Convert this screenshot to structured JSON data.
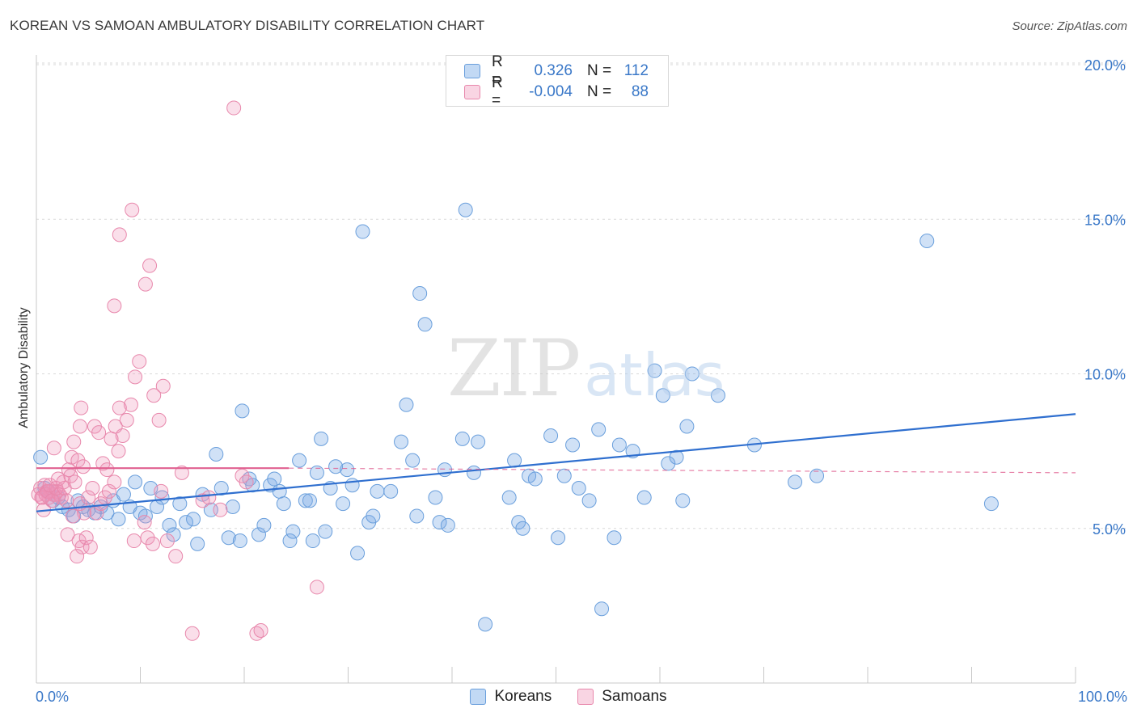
{
  "title": "KOREAN VS SAMOAN AMBULATORY DISABILITY CORRELATION CHART",
  "source": "Source: ZipAtlas.com",
  "watermark": {
    "zip": "ZIP",
    "atlas": "atlas"
  },
  "legend": {
    "rows": [
      {
        "r_label": "R =",
        "r_value": "0.326",
        "n_label": "N =",
        "n_value": "112"
      },
      {
        "r_label": "R =",
        "r_value": "-0.004",
        "n_label": "N =",
        "n_value": "88"
      }
    ]
  },
  "bottom_legend": [
    "Koreans",
    "Samoans"
  ],
  "colors": {
    "korean_fill": "rgba(120,170,230,0.35)",
    "korean_stroke": "#6a9fdc",
    "korean_line": "#2f6fcf",
    "samoan_fill": "rgba(240,150,185,0.30)",
    "samoan_stroke": "#e888ac",
    "samoan_line": "#e06090",
    "grid": "#d9d9d9",
    "axis_text": "#3a78c8"
  },
  "chart_data": {
    "type": "scatter",
    "title": "KOREAN VS SAMOAN AMBULATORY DISABILITY CORRELATION CHART",
    "xlabel": "",
    "ylabel": "Ambulatory Disability",
    "xlim": [
      0,
      100
    ],
    "ylim": [
      0,
      20.5
    ],
    "x_tick_labels": [
      "0.0%",
      "100.0%"
    ],
    "y_ticks": [
      5,
      10,
      15,
      20
    ],
    "y_tick_labels": [
      "5.0%",
      "10.0%",
      "15.0%",
      "20.0%"
    ],
    "grid": true,
    "legend_position": "top-center",
    "series": [
      {
        "name": "Koreans",
        "r": 0.326,
        "n": 112,
        "trend": {
          "x": [
            0,
            100
          ],
          "y": [
            5.55,
            8.7
          ]
        },
        "points": [
          [
            0.4,
            7.3
          ],
          [
            0.8,
            6.3
          ],
          [
            1.2,
            6.2
          ],
          [
            1.6,
            5.9
          ],
          [
            2.1,
            6.0
          ],
          [
            2.5,
            5.7
          ],
          [
            3.1,
            5.6
          ],
          [
            3.6,
            5.4
          ],
          [
            4.0,
            5.9
          ],
          [
            4.5,
            5.7
          ],
          [
            5.0,
            5.6
          ],
          [
            5.6,
            5.5
          ],
          [
            6.2,
            5.7
          ],
          [
            6.8,
            5.5
          ],
          [
            7.4,
            5.9
          ],
          [
            7.9,
            5.3
          ],
          [
            8.4,
            6.1
          ],
          [
            9.0,
            5.7
          ],
          [
            9.5,
            6.5
          ],
          [
            10.0,
            5.5
          ],
          [
            10.5,
            5.4
          ],
          [
            11.0,
            6.3
          ],
          [
            11.6,
            5.7
          ],
          [
            12.1,
            6.0
          ],
          [
            12.8,
            5.1
          ],
          [
            13.2,
            4.8
          ],
          [
            13.8,
            5.8
          ],
          [
            14.4,
            5.2
          ],
          [
            15.1,
            5.3
          ],
          [
            15.5,
            4.5
          ],
          [
            16.0,
            6.1
          ],
          [
            16.8,
            5.6
          ],
          [
            17.3,
            7.4
          ],
          [
            17.8,
            6.3
          ],
          [
            18.5,
            4.7
          ],
          [
            18.9,
            5.7
          ],
          [
            19.6,
            4.6
          ],
          [
            19.8,
            8.8
          ],
          [
            20.5,
            6.6
          ],
          [
            20.8,
            6.4
          ],
          [
            21.4,
            4.8
          ],
          [
            21.9,
            5.1
          ],
          [
            22.5,
            6.4
          ],
          [
            22.9,
            6.6
          ],
          [
            23.4,
            6.2
          ],
          [
            23.8,
            5.8
          ],
          [
            24.4,
            4.6
          ],
          [
            24.7,
            4.9
          ],
          [
            25.3,
            7.2
          ],
          [
            25.9,
            5.9
          ],
          [
            26.3,
            5.9
          ],
          [
            26.6,
            4.6
          ],
          [
            27.0,
            6.8
          ],
          [
            27.4,
            7.9
          ],
          [
            27.8,
            4.9
          ],
          [
            28.3,
            6.3
          ],
          [
            28.8,
            7.0
          ],
          [
            29.5,
            5.8
          ],
          [
            29.9,
            6.9
          ],
          [
            30.4,
            6.4
          ],
          [
            30.9,
            4.2
          ],
          [
            31.4,
            14.6
          ],
          [
            32.0,
            5.2
          ],
          [
            32.4,
            5.4
          ],
          [
            32.8,
            6.2
          ],
          [
            34.1,
            6.2
          ],
          [
            35.1,
            7.8
          ],
          [
            35.6,
            9.0
          ],
          [
            36.2,
            7.2
          ],
          [
            36.6,
            5.4
          ],
          [
            36.9,
            12.6
          ],
          [
            37.4,
            11.6
          ],
          [
            38.4,
            6.0
          ],
          [
            38.8,
            5.2
          ],
          [
            39.3,
            6.9
          ],
          [
            39.6,
            5.1
          ],
          [
            41.0,
            7.9
          ],
          [
            41.3,
            15.3
          ],
          [
            42.1,
            6.8
          ],
          [
            42.5,
            7.8
          ],
          [
            43.2,
            1.9
          ],
          [
            45.5,
            6.0
          ],
          [
            46.0,
            7.2
          ],
          [
            46.4,
            5.2
          ],
          [
            46.8,
            5.0
          ],
          [
            47.4,
            6.7
          ],
          [
            48.0,
            6.6
          ],
          [
            49.5,
            8.0
          ],
          [
            50.2,
            4.7
          ],
          [
            50.8,
            6.7
          ],
          [
            51.6,
            7.7
          ],
          [
            52.2,
            6.3
          ],
          [
            53.2,
            5.9
          ],
          [
            54.1,
            8.2
          ],
          [
            54.4,
            2.4
          ],
          [
            55.6,
            4.7
          ],
          [
            56.1,
            7.7
          ],
          [
            57.4,
            7.5
          ],
          [
            58.5,
            6.0
          ],
          [
            59.5,
            10.1
          ],
          [
            60.3,
            9.3
          ],
          [
            60.8,
            7.1
          ],
          [
            61.6,
            7.3
          ],
          [
            62.2,
            5.9
          ],
          [
            62.6,
            8.3
          ],
          [
            63.1,
            10.0
          ],
          [
            65.6,
            9.3
          ],
          [
            69.1,
            7.7
          ],
          [
            73.0,
            6.5
          ],
          [
            75.1,
            6.7
          ],
          [
            85.7,
            14.3
          ],
          [
            91.9,
            5.8
          ]
        ]
      },
      {
        "name": "Samoans",
        "r": -0.004,
        "n": 88,
        "trend": {
          "x": [
            0,
            24.3
          ],
          "y": [
            6.95,
            6.95
          ]
        },
        "trend_dashed": {
          "x": [
            24.3,
            100
          ],
          "y": [
            6.95,
            6.8
          ]
        },
        "points": [
          [
            0.2,
            6.1
          ],
          [
            0.4,
            6.3
          ],
          [
            0.6,
            6.0
          ],
          [
            0.8,
            6.4
          ],
          [
            1.0,
            6.2
          ],
          [
            1.2,
            6.0
          ],
          [
            1.4,
            6.2
          ],
          [
            1.6,
            6.1
          ],
          [
            1.8,
            6.1
          ],
          [
            2.0,
            6.2
          ],
          [
            2.2,
            6.1
          ],
          [
            2.4,
            6.0
          ],
          [
            0.5,
            6.0
          ],
          [
            1.1,
            6.2
          ],
          [
            0.9,
            6.1
          ],
          [
            1.5,
            5.9
          ],
          [
            1.9,
            6.3
          ],
          [
            2.6,
            6.5
          ],
          [
            3.1,
            6.9
          ],
          [
            3.4,
            7.3
          ],
          [
            3.6,
            7.8
          ],
          [
            4.0,
            7.2
          ],
          [
            4.5,
            7.0
          ],
          [
            2.7,
            6.3
          ],
          [
            1.3,
            6.4
          ],
          [
            0.7,
            5.6
          ],
          [
            1.7,
            7.6
          ],
          [
            2.1,
            6.6
          ],
          [
            2.9,
            5.9
          ],
          [
            3.3,
            6.7
          ],
          [
            3.7,
            6.5
          ],
          [
            4.2,
            5.8
          ],
          [
            4.6,
            5.5
          ],
          [
            5.0,
            6.0
          ],
          [
            5.4,
            6.3
          ],
          [
            5.8,
            5.5
          ],
          [
            6.2,
            5.8
          ],
          [
            6.6,
            6.0
          ],
          [
            7.0,
            6.2
          ],
          [
            7.5,
            6.5
          ],
          [
            7.9,
            7.5
          ],
          [
            8.3,
            8.0
          ],
          [
            8.7,
            8.5
          ],
          [
            9.1,
            9.0
          ],
          [
            9.5,
            9.9
          ],
          [
            9.9,
            10.4
          ],
          [
            10.5,
            12.9
          ],
          [
            10.9,
            13.5
          ],
          [
            11.3,
            9.3
          ],
          [
            11.8,
            8.5
          ],
          [
            12.2,
            9.6
          ],
          [
            3.0,
            4.8
          ],
          [
            3.5,
            5.4
          ],
          [
            4.1,
            4.6
          ],
          [
            4.4,
            4.4
          ],
          [
            4.8,
            4.7
          ],
          [
            5.2,
            4.4
          ],
          [
            3.9,
            4.1
          ],
          [
            4.3,
            8.9
          ],
          [
            4.2,
            8.3
          ],
          [
            5.6,
            8.3
          ],
          [
            6.0,
            8.1
          ],
          [
            6.4,
            7.1
          ],
          [
            6.8,
            6.9
          ],
          [
            7.2,
            7.9
          ],
          [
            7.6,
            8.3
          ],
          [
            8.0,
            8.9
          ],
          [
            9.4,
            4.6
          ],
          [
            10.4,
            5.2
          ],
          [
            10.7,
            4.7
          ],
          [
            11.2,
            4.5
          ],
          [
            12.0,
            6.2
          ],
          [
            12.6,
            4.6
          ],
          [
            13.4,
            4.1
          ],
          [
            14.0,
            6.8
          ],
          [
            15.0,
            1.6
          ],
          [
            16.0,
            5.9
          ],
          [
            16.6,
            6.0
          ],
          [
            17.7,
            5.6
          ],
          [
            19.8,
            6.7
          ],
          [
            20.2,
            6.5
          ],
          [
            21.2,
            1.6
          ],
          [
            21.6,
            1.7
          ],
          [
            27.0,
            3.1
          ],
          [
            19.0,
            18.6
          ],
          [
            9.2,
            15.3
          ],
          [
            8.0,
            14.5
          ],
          [
            7.5,
            12.2
          ]
        ]
      }
    ]
  }
}
